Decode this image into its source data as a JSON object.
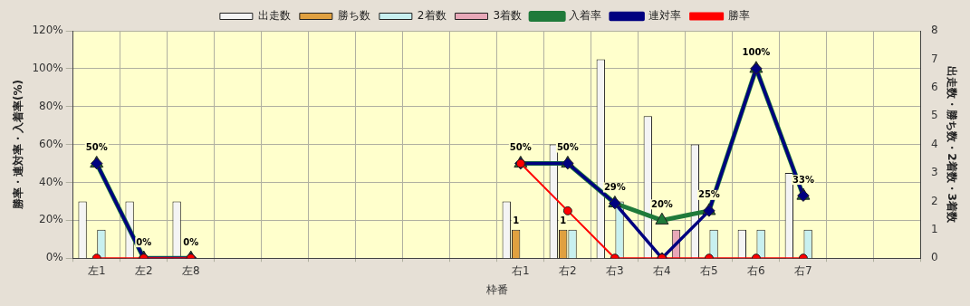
{
  "chart_data": {
    "type": "bar",
    "categories": [
      "左1",
      "左2",
      "左8",
      null,
      null,
      null,
      null,
      null,
      null,
      "右1",
      "右2",
      "右3",
      "右4",
      "右5",
      "右6",
      "右7",
      null,
      null
    ],
    "xlabel": "枠番",
    "ylabel": "勝率・連対率・入着率(%)",
    "y2label": "出走数・勝ち数・2着数・3着数",
    "series": [
      {
        "name": "出走数",
        "axis": "y2",
        "color": "#f4f4f4",
        "values": [
          2,
          2,
          2,
          null,
          null,
          null,
          null,
          null,
          null,
          2,
          4,
          7,
          5,
          4,
          1,
          3,
          null,
          null
        ]
      },
      {
        "name": "勝ち数",
        "axis": "y2",
        "color": "#e0a040",
        "values": [
          0,
          0,
          0,
          null,
          null,
          null,
          null,
          null,
          null,
          1,
          1,
          0,
          0,
          0,
          0,
          0,
          null,
          null
        ],
        "value_labels": [
          null,
          null,
          null,
          null,
          null,
          null,
          null,
          null,
          null,
          "1",
          "1",
          null,
          null,
          null,
          null,
          null,
          null,
          null
        ]
      },
      {
        "name": "2着数",
        "axis": "y2",
        "color": "#c8f0f0",
        "values": [
          1,
          0,
          0,
          null,
          null,
          null,
          null,
          null,
          null,
          0,
          1,
          2,
          0,
          1,
          1,
          1,
          null,
          null
        ]
      },
      {
        "name": "3着数",
        "axis": "y2",
        "color": "#e8a8b8",
        "values": [
          0,
          0,
          0,
          null,
          null,
          null,
          null,
          null,
          null,
          0,
          0,
          0,
          1,
          0,
          0,
          0,
          null,
          null
        ]
      },
      {
        "name": "入着率",
        "type": "line",
        "marker": "triangle",
        "color": "#1f7a3a",
        "values": [
          50,
          0,
          0,
          null,
          null,
          null,
          null,
          null,
          null,
          50,
          50,
          29,
          20,
          25,
          100,
          33,
          null,
          null
        ],
        "value_labels": [
          "50%",
          "0%",
          "0%",
          null,
          null,
          null,
          null,
          null,
          null,
          "50%",
          "50%",
          "29%",
          "20%",
          "25%",
          "100%",
          "33%",
          null,
          null
        ]
      },
      {
        "name": "連対率",
        "type": "line",
        "marker": "diamond",
        "color": "#000080",
        "values": [
          50,
          0,
          0,
          null,
          null,
          null,
          null,
          null,
          null,
          50,
          50,
          29,
          0,
          25,
          100,
          33,
          null,
          null
        ]
      },
      {
        "name": "勝率",
        "type": "line",
        "marker": "circle",
        "color": "#ff0000",
        "values": [
          0,
          0,
          0,
          null,
          null,
          null,
          null,
          null,
          null,
          50,
          25,
          0,
          0,
          0,
          0,
          0,
          null,
          null
        ]
      }
    ],
    "ylim": [
      0,
      120
    ],
    "yticks": [
      {
        "value": 0,
        "label": "0%"
      },
      {
        "value": 20,
        "label": "20%"
      },
      {
        "value": 40,
        "label": "40%"
      },
      {
        "value": 60,
        "label": "60%"
      },
      {
        "value": 80,
        "label": "80%"
      },
      {
        "value": 100,
        "label": "100%"
      },
      {
        "value": 120,
        "label": "120%"
      }
    ],
    "y2lim": [
      0,
      8
    ],
    "y2ticks": [
      0,
      1,
      2,
      3,
      4,
      5,
      6,
      7,
      8
    ],
    "grid": true,
    "legend": "top"
  }
}
